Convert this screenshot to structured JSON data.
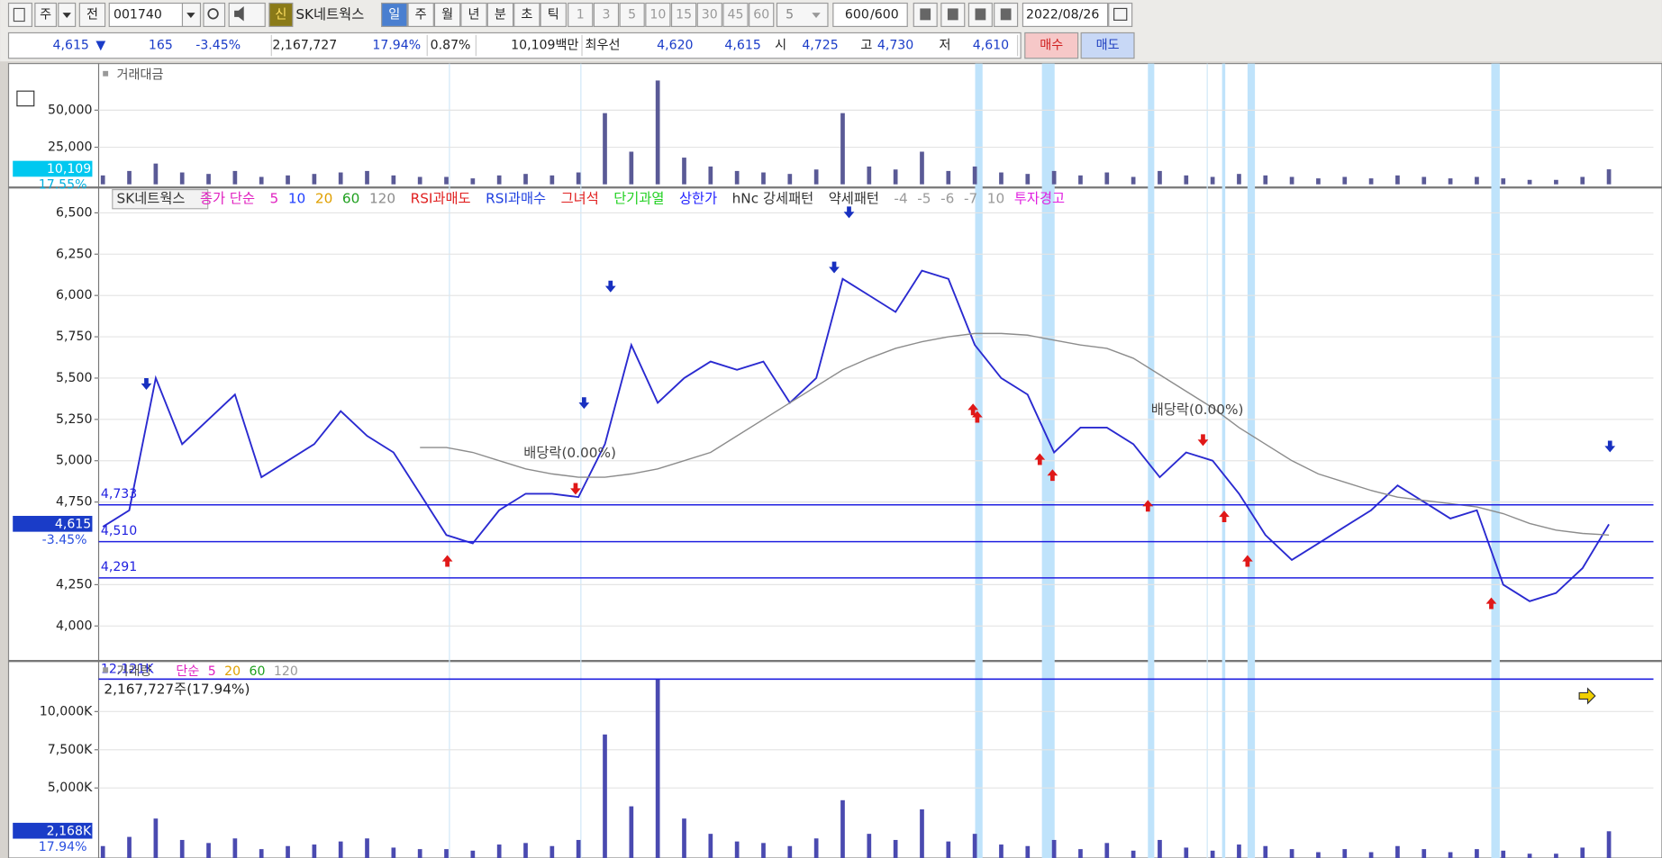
{
  "toolbar": {
    "market": "주",
    "mode": "전",
    "code": "001740",
    "new": "신",
    "name": "SK네트웍스",
    "periods": [
      "일",
      "주",
      "월",
      "년",
      "분",
      "초",
      "틱"
    ],
    "intervals": [
      "1",
      "3",
      "5",
      "10",
      "15",
      "30",
      "45",
      "60"
    ],
    "interval": "5",
    "count": "600",
    "total": "/600",
    "date": "2022/08/26"
  },
  "quote": {
    "price": "4,615",
    "direction": "▼",
    "change": "165",
    "change_rate": "-3.45%",
    "volume": "2,167,727",
    "turnover_rate": "17.94%",
    "ratio": "0.87%",
    "trading_value": "10,109백만",
    "best_label": "최우선",
    "ask": "4,620",
    "bid": "4,615",
    "open_label": "시",
    "open": "4,725",
    "high_label": "고",
    "high": "4,730",
    "low_label": "저",
    "low": "4,610",
    "buy": "매수",
    "sell": "매도"
  },
  "chart_data": [
    {
      "type": "bar",
      "title": "거래대금",
      "color": "#5a5a96",
      "values": [
        6000,
        9000,
        14000,
        8000,
        7000,
        9000,
        5000,
        6000,
        7000,
        8000,
        9000,
        6000,
        5000,
        5000,
        4000,
        6000,
        7000,
        6000,
        8000,
        48000,
        22000,
        70000,
        18000,
        12000,
        9000,
        8000,
        7000,
        10000,
        48000,
        12000,
        10000,
        22000,
        9000,
        12000,
        8000,
        7000,
        9000,
        6000,
        8000,
        5000,
        9000,
        6000,
        5000,
        7000,
        6000,
        5000,
        4000,
        5000,
        4000,
        6000,
        5000,
        4000,
        5000,
        4000,
        3000,
        3000,
        5000,
        10109
      ],
      "ylim": [
        0,
        80000
      ],
      "yticks": [
        {
          "value": 25000,
          "label": "25,000"
        },
        {
          "value": 50000,
          "label": "50,000"
        }
      ],
      "current": {
        "value": 10109,
        "label": "10,109"
      },
      "current_rate": "17.55%"
    },
    {
      "type": "line",
      "series": [
        {
          "name": "SK네트웍스",
          "color": "#2a2ad0",
          "values": [
            4600,
            4700,
            5500,
            5100,
            5250,
            5400,
            4900,
            5000,
            5100,
            5300,
            5150,
            5050,
            4800,
            4550,
            4500,
            4700,
            4800,
            4800,
            4780,
            5100,
            5700,
            5350,
            5500,
            5600,
            5550,
            5600,
            5350,
            5500,
            6100,
            6000,
            5900,
            6150,
            6100,
            5700,
            5500,
            5400,
            5050,
            5200,
            5200,
            5100,
            4900,
            5050,
            5000,
            4800,
            4550,
            4400,
            4500,
            4600,
            4700,
            4850,
            4750,
            4650,
            4700,
            4250,
            4150,
            4200,
            4350,
            4615
          ]
        },
        {
          "name": "120",
          "color": "#8c8c8c",
          "values": [
            null,
            null,
            null,
            null,
            null,
            null,
            null,
            null,
            null,
            null,
            null,
            null,
            5080,
            5080,
            5050,
            5000,
            4950,
            4920,
            4900,
            4900,
            4920,
            4950,
            5000,
            5050,
            5150,
            5250,
            5350,
            5450,
            5550,
            5620,
            5680,
            5720,
            5750,
            5770,
            5770,
            5760,
            5730,
            5700,
            5680,
            5620,
            5520,
            5420,
            5320,
            5200,
            5100,
            5000,
            4920,
            4870,
            4820,
            4780,
            4760,
            4740,
            4720,
            4680,
            4620,
            4580,
            4560,
            4550
          ]
        }
      ],
      "legend": [
        {
          "label": "종가 단순",
          "color": "#e020c0"
        },
        {
          "label": "5",
          "color": "#e020c0"
        },
        {
          "label": "10",
          "color": "#2040ff"
        },
        {
          "label": "20",
          "color": "#e0a000"
        },
        {
          "label": "60",
          "color": "#20a020"
        },
        {
          "label": "RSI과매도",
          "color": "#e02020"
        },
        {
          "label": "RSI과매수",
          "color": "#2040e0"
        },
        {
          "label": "그녀석",
          "color": "#e02020"
        },
        {
          "label": "단기과열",
          "color": "#20d020"
        },
        {
          "label": "상한가",
          "color": "#2020ff"
        },
        {
          "label": "hNc 강세패턴",
          "color": "#333333"
        },
        {
          "label": "약세패턴",
          "color": "#333333"
        },
        {
          "label": "-4",
          "color": "#999999"
        },
        {
          "label": "-5",
          "color": "#999999"
        },
        {
          "label": "-6",
          "color": "#999999"
        },
        {
          "label": "-7",
          "color": "#999999"
        },
        {
          "label": "10",
          "color": "#999999"
        },
        {
          "label": "투자경고",
          "color": "#e020e0"
        }
      ],
      "ylim": [
        3801,
        6647
      ],
      "yticks": [
        {
          "value": 4000,
          "label": "4,000"
        },
        {
          "value": 4250,
          "label": "4,250"
        },
        {
          "value": 4750,
          "label": "4,750"
        },
        {
          "value": 5000,
          "label": "5,000"
        },
        {
          "value": 5250,
          "label": "5,250"
        },
        {
          "value": 5500,
          "label": "5,500"
        },
        {
          "value": 5750,
          "label": "5,750"
        },
        {
          "value": 6000,
          "label": "6,000"
        },
        {
          "value": 6250,
          "label": "6,250"
        },
        {
          "value": 6500,
          "label": "6,500"
        }
      ],
      "levels": [
        {
          "value": 4733,
          "label": "4,733"
        },
        {
          "value": 4510,
          "label": "4,510"
        },
        {
          "value": 4291,
          "label": "4,291"
        }
      ],
      "current": {
        "value": 4615,
        "label": "4,615"
      },
      "current_rate": "-3.45%",
      "annotations": [
        "배당락(0.00%)",
        "배당락(0.00%)"
      ]
    },
    {
      "type": "bar",
      "title": "거래량",
      "color": "#4a4ab0",
      "values": [
        1200,
        1800,
        3000,
        1600,
        1400,
        1700,
        1000,
        1200,
        1300,
        1500,
        1700,
        1100,
        1000,
        1000,
        900,
        1300,
        1400,
        1200,
        1600,
        8500,
        3800,
        12121,
        3000,
        2000,
        1500,
        1400,
        1200,
        1700,
        4200,
        2000,
        1600,
        3600,
        1500,
        2000,
        1300,
        1200,
        1600,
        1000,
        1400,
        900,
        1600,
        1100,
        900,
        1300,
        1200,
        1000,
        800,
        1000,
        800,
        1200,
        1000,
        800,
        1000,
        900,
        700,
        700,
        1100,
        2168
      ],
      "ylim": [
        211,
        13239
      ],
      "yticks": [
        {
          "value": 5000,
          "label": "5,000K"
        },
        {
          "value": 7500,
          "label": "7,500K"
        },
        {
          "value": 10000,
          "label": "10,000K"
        }
      ],
      "max": {
        "value": 12121,
        "label": "12,121K"
      },
      "legend": [
        {
          "label": "단순",
          "color": "#e020c0"
        },
        {
          "label": "5",
          "color": "#e020c0"
        },
        {
          "label": "20",
          "color": "#e0a000"
        },
        {
          "label": "60",
          "color": "#20a020"
        },
        {
          "label": "120",
          "color": "#999999"
        }
      ],
      "summary": "2,167,727주(17.94%)",
      "current": {
        "value": 2168,
        "label": "2,168K"
      },
      "current_rate": "17.94%"
    }
  ]
}
